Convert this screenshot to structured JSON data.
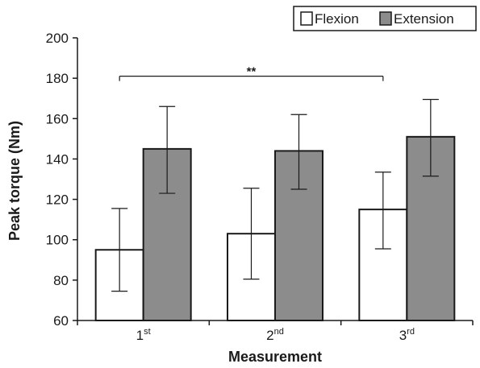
{
  "chart_data": {
    "type": "bar",
    "categories": [
      {
        "base": "1",
        "sup": "st"
      },
      {
        "base": "2",
        "sup": "nd"
      },
      {
        "base": "3",
        "sup": "rd"
      }
    ],
    "series": [
      {
        "name": "Flexion",
        "color": "#ffffff",
        "values": [
          95,
          103,
          115
        ],
        "errors": [
          [
            74.5,
            115.5
          ],
          [
            80.5,
            125.5
          ],
          [
            95.5,
            133.5
          ]
        ]
      },
      {
        "name": "Extension",
        "color": "#8c8c8c",
        "values": [
          145,
          144,
          151
        ],
        "errors": [
          [
            123,
            166
          ],
          [
            125,
            162
          ],
          [
            131.5,
            169.5
          ]
        ]
      }
    ],
    "xlabel": "Measurement",
    "ylabel": "Peak torque (Nm)",
    "ylim": [
      60,
      200
    ],
    "yticks": [
      60,
      80,
      100,
      120,
      140,
      160,
      180,
      200
    ],
    "legend_position": "top-right",
    "grid": false,
    "significance": {
      "label": "**",
      "from_category": 0,
      "to_category": 2,
      "y": 181
    }
  }
}
